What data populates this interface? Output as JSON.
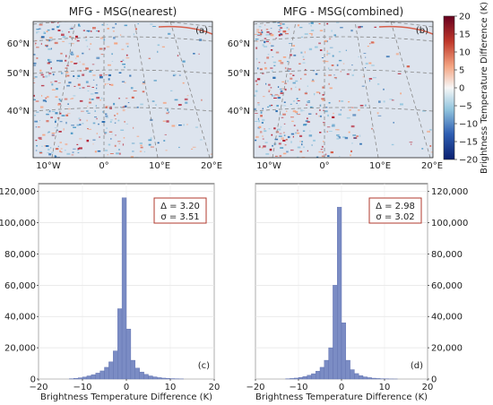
{
  "chart_data": [
    {
      "id": "a",
      "type": "heatmap",
      "title": "MFG - MSG(nearest)",
      "panel_label": "(a)",
      "lat_ticks": [
        "40°N",
        "50°N",
        "60°N"
      ],
      "lon_ticks": [
        "10°W",
        "0°",
        "10°E",
        "20°E"
      ]
    },
    {
      "id": "b",
      "type": "heatmap",
      "title": "MFG - MSG(combined)",
      "panel_label": "(b)",
      "lat_ticks": [
        "40°N",
        "50°N",
        "60°N"
      ],
      "lon_ticks": [
        "10°W",
        "0°",
        "10°E",
        "20°E"
      ]
    },
    {
      "id": "c",
      "type": "bar",
      "panel_label": "(c)",
      "xlabel": "Brightness Temperature Difference (K)",
      "xlim": [
        -20,
        20
      ],
      "ylim": [
        0,
        125000
      ],
      "y_ticks": [
        "0",
        "20,000",
        "40,000",
        "60,000",
        "80,000",
        "100,000",
        "120,000"
      ],
      "x_ticks": [
        "−20",
        "−10",
        "0",
        "10",
        "20"
      ],
      "stats": [
        "Δ = 3.20",
        "σ = 3.51"
      ],
      "bin_edges_start": -13,
      "bin_width": 1,
      "counts": [
        200,
        450,
        800,
        1300,
        2000,
        2800,
        3800,
        5200,
        7500,
        11000,
        18000,
        45000,
        116000,
        32000,
        12000,
        7000,
        4500,
        3000,
        2000,
        1400,
        900,
        600,
        400,
        250,
        150,
        80
      ]
    },
    {
      "id": "d",
      "type": "bar",
      "panel_label": "(d)",
      "xlabel": "Brightness Temperature Difference (K)",
      "xlim": [
        -20,
        20
      ],
      "ylim": [
        0,
        125000
      ],
      "y_ticks": [
        "0",
        "20,000",
        "40,000",
        "60,000",
        "80,000",
        "100,000",
        "120,000"
      ],
      "x_ticks": [
        "−20",
        "−10",
        "0",
        "10",
        "20"
      ],
      "stats": [
        "Δ = 2.98",
        "σ = 3.02"
      ],
      "bin_edges_start": -13,
      "bin_width": 1,
      "counts": [
        150,
        350,
        600,
        1000,
        1600,
        2400,
        3400,
        5000,
        7500,
        12000,
        20000,
        60000,
        110000,
        36000,
        12000,
        6000,
        3500,
        2200,
        1400,
        900,
        550,
        350,
        200,
        120,
        60,
        30
      ]
    }
  ],
  "colorbar": {
    "label": "Brightness Temperature Difference (K)",
    "min": -20,
    "max": 20,
    "ticks": [
      "20",
      "15",
      "10",
      "5",
      "0",
      "−5",
      "−10",
      "−15",
      "−20"
    ]
  },
  "colors": {
    "bar_fill": "#7b8cc4",
    "bar_edge": "#5e6fae",
    "stat_box_edge": "#b03a2e",
    "cmap_low": "#1b2f8f",
    "cmap_mid": "#f4f4f4",
    "cmap_high": "#8b0a1a"
  }
}
